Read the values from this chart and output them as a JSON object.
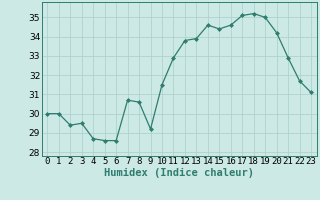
{
  "x": [
    0,
    1,
    2,
    3,
    4,
    5,
    6,
    7,
    8,
    9,
    10,
    11,
    12,
    13,
    14,
    15,
    16,
    17,
    18,
    19,
    20,
    21,
    22,
    23
  ],
  "y": [
    30.0,
    30.0,
    29.4,
    29.5,
    28.7,
    28.6,
    28.6,
    30.7,
    30.6,
    29.2,
    31.5,
    32.9,
    33.8,
    33.9,
    34.6,
    34.4,
    34.6,
    35.1,
    35.2,
    35.0,
    34.2,
    32.9,
    31.7,
    31.1
  ],
  "xlim": [
    -0.5,
    23.5
  ],
  "ylim": [
    27.8,
    35.8
  ],
  "yticks": [
    28,
    29,
    30,
    31,
    32,
    33,
    34,
    35
  ],
  "xtick_labels": [
    "0",
    "1",
    "2",
    "3",
    "4",
    "5",
    "6",
    "7",
    "8",
    "9",
    "10",
    "11",
    "12",
    "13",
    "14",
    "15",
    "16",
    "17",
    "18",
    "19",
    "20",
    "21",
    "22",
    "23"
  ],
  "xlabel": "Humidex (Indice chaleur)",
  "line_color": "#2e7d6e",
  "marker": "D",
  "marker_size": 2,
  "bg_color": "#cce9e5",
  "grid_color": "#aacfcb",
  "tick_fontsize": 6.5,
  "xlabel_fontsize": 7.5
}
